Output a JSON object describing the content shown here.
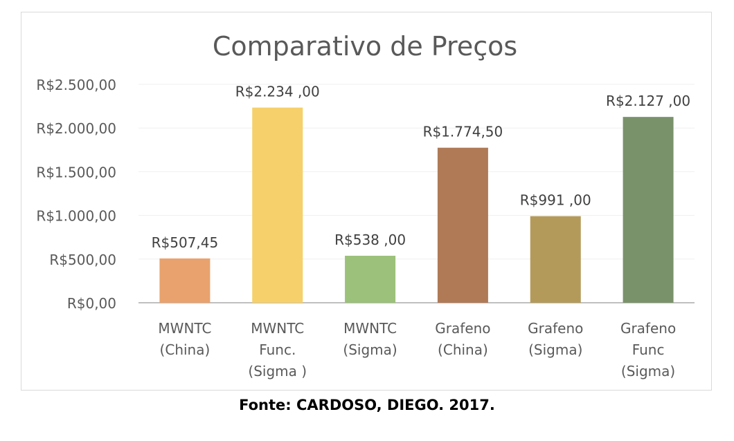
{
  "chart_data": {
    "type": "bar",
    "title": "Comparativo de Preços",
    "categories": [
      [
        "MWNTC",
        "(China)"
      ],
      [
        "MWNTC",
        "Func.",
        "(Sigma )"
      ],
      [
        "MWNTC",
        "(Sigma)"
      ],
      [
        "Grafeno",
        "(China)"
      ],
      [
        "Grafeno",
        "(Sigma)"
      ],
      [
        "Grafeno",
        "Func",
        "(Sigma)"
      ]
    ],
    "values": [
      507.45,
      2234.0,
      538.0,
      1774.5,
      991.0,
      2127.0
    ],
    "data_labels": [
      "R$507,45",
      "R$2.234 ,00",
      "R$538 ,00",
      "R$1.774,50",
      "R$991 ,00",
      "R$2.127 ,00"
    ],
    "colors": [
      "#e9a26e",
      "#f6d06a",
      "#9cc17a",
      "#b07a56",
      "#b49a5a",
      "#7a926a"
    ],
    "ylim": [
      0,
      2500
    ],
    "yticks": [
      0,
      500,
      1000,
      1500,
      2000,
      2500
    ],
    "ytick_labels": [
      "R$0,00",
      "R$500,00",
      "R$1.000,00",
      "R$1.500,00",
      "R$2.000,00",
      "R$2.500,00"
    ],
    "xlabel": "",
    "ylabel": "",
    "grid": true,
    "legend": "none"
  },
  "caption": "Fonte: CARDOSO, DIEGO. 2017."
}
